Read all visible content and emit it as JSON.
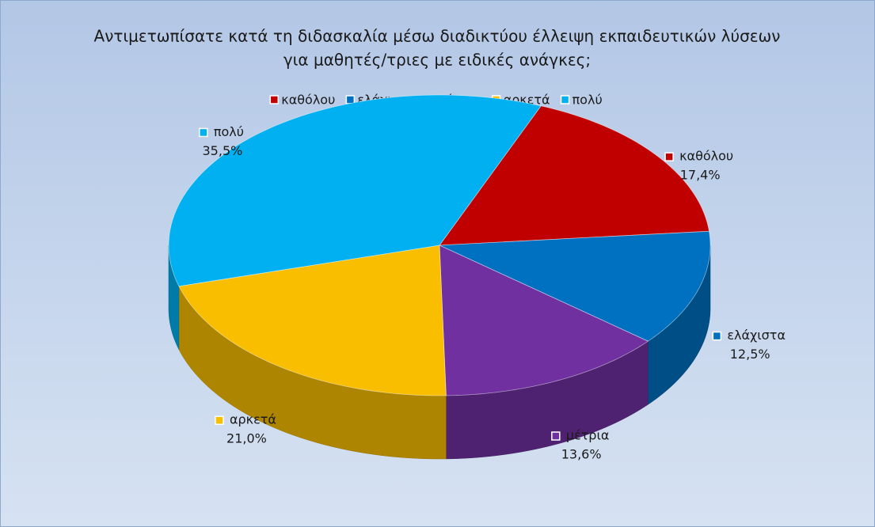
{
  "chart_data": {
    "type": "pie3d",
    "title": [
      "Αντιμετωπίσατε κατά τη διδασκαλία μέσω διαδικτύου έλλειψη εκπαιδευτικών λύσεων",
      "για μαθητές/τριες με ειδικές ανάγκες;"
    ],
    "categories": [
      "καθόλου",
      "ελάχιστα",
      "μέτρια",
      "αρκετά",
      "πολύ"
    ],
    "values": [
      17.4,
      12.5,
      13.6,
      21.0,
      35.5
    ],
    "value_labels": [
      "17,4%",
      "12,5%",
      "13,6%",
      "21,0%",
      "35,5%"
    ],
    "colors": [
      "#c00000",
      "#0070c0",
      "#7030a0",
      "#f9be00",
      "#00b0f0"
    ],
    "legend": "top"
  }
}
